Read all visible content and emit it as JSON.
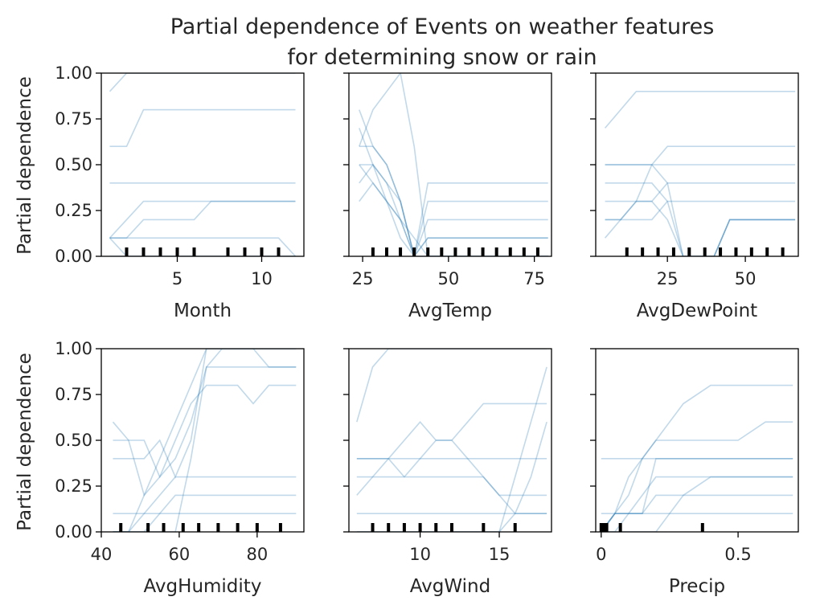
{
  "title_line1": "Partial dependence of Events on weather features",
  "title_line2": "for determining snow or rain",
  "ylabel": "Partial dependence",
  "line_color": "#1f77b4",
  "chart_data": [
    {
      "type": "line",
      "xlabel": "Month",
      "xlim": [
        0.5,
        12.5
      ],
      "ylim": [
        0,
        1
      ],
      "xticks": [
        5,
        10
      ],
      "yticks": [
        0,
        0.25,
        0.5,
        0.75,
        1.0
      ],
      "rug": [
        2,
        3,
        4,
        5,
        6,
        8,
        9,
        10,
        11
      ],
      "x": [
        1,
        2,
        3,
        4,
        5,
        6,
        7,
        8,
        9,
        10,
        11,
        12
      ],
      "series": [
        {
          "values": [
            0.9,
            1.0,
            1.0,
            1.0,
            1.0,
            1.0,
            1.0,
            1.0,
            1.0,
            1.0,
            1.0,
            1.0
          ]
        },
        {
          "values": [
            0.6,
            0.6,
            0.8,
            0.8,
            0.8,
            0.8,
            0.8,
            0.8,
            0.8,
            0.8,
            0.8,
            0.8
          ]
        },
        {
          "values": [
            0.4,
            0.4,
            0.4,
            0.4,
            0.4,
            0.4,
            0.4,
            0.4,
            0.4,
            0.4,
            0.4,
            0.4
          ]
        },
        {
          "values": [
            0.1,
            0.2,
            0.3,
            0.3,
            0.3,
            0.3,
            0.3,
            0.3,
            0.3,
            0.3,
            0.3,
            0.3
          ]
        },
        {
          "values": [
            0.1,
            0.1,
            0.2,
            0.2,
            0.2,
            0.2,
            0.3,
            0.3,
            0.3,
            0.3,
            0.3,
            0.3
          ]
        },
        {
          "values": [
            0.1,
            0.1,
            0.1,
            0.1,
            0.1,
            0.1,
            0.1,
            0.1,
            0.1,
            0.1,
            0.1,
            0.0
          ]
        },
        {
          "values": [
            0.1,
            0.0,
            0.0,
            0.0,
            0.0,
            0.0,
            0.0,
            0.0,
            0.0,
            0.0,
            0.0,
            0.0
          ]
        },
        {
          "values": [
            0.0,
            0.0,
            0.0,
            0.0,
            0.0,
            0.0,
            0.0,
            0.0,
            0.0,
            0.0,
            0.0,
            0.0
          ]
        }
      ]
    },
    {
      "type": "line",
      "xlabel": "AvgTemp",
      "xlim": [
        21,
        80
      ],
      "ylim": [
        0,
        1
      ],
      "xticks": [
        25,
        50,
        75
      ],
      "yticks": [
        0,
        0.25,
        0.5,
        0.75,
        1.0
      ],
      "rug": [
        28,
        32,
        36,
        40,
        44,
        48,
        52,
        56,
        60,
        64,
        68,
        72,
        76
      ],
      "x": [
        24,
        28,
        32,
        36,
        40,
        44,
        48,
        52,
        60,
        70,
        79
      ],
      "series": [
        {
          "values": [
            0.6,
            0.6,
            0.5,
            0.3,
            0.0,
            0.1,
            0.1,
            0.1,
            0.1,
            0.1,
            0.1
          ]
        },
        {
          "values": [
            0.5,
            0.4,
            0.3,
            0.2,
            0.0,
            0.3,
            0.3,
            0.3,
            0.3,
            0.3,
            0.3
          ]
        },
        {
          "values": [
            0.7,
            0.5,
            0.4,
            0.2,
            0.0,
            0.2,
            0.2,
            0.2,
            0.2,
            0.2,
            0.2
          ]
        },
        {
          "values": [
            0.8,
            0.6,
            0.5,
            0.3,
            0.0,
            0.4,
            0.4,
            0.4,
            0.4,
            0.4,
            0.4
          ]
        },
        {
          "values": [
            0.4,
            0.5,
            0.3,
            0.1,
            0.0,
            0.1,
            0.1,
            0.1,
            0.1,
            0.1,
            0.1
          ]
        },
        {
          "values": [
            0.6,
            0.8,
            0.9,
            1.0,
            0.6,
            0.0,
            0.0,
            0.0,
            0.0,
            0.0,
            0.0
          ]
        },
        {
          "values": [
            0.3,
            0.4,
            0.3,
            0.2,
            0.1,
            0.0,
            0.0,
            0.0,
            0.0,
            0.0,
            0.0
          ]
        },
        {
          "values": [
            0.5,
            0.5,
            0.4,
            0.3,
            0.0,
            0.0,
            0.0,
            0.0,
            0.0,
            0.0,
            0.0
          ]
        }
      ]
    },
    {
      "type": "line",
      "xlabel": "AvgDewPoint",
      "xlim": [
        2,
        67
      ],
      "ylim": [
        0,
        1
      ],
      "xticks": [
        25,
        50
      ],
      "yticks": [
        0,
        0.25,
        0.5,
        0.75,
        1.0
      ],
      "rug": [
        12,
        17,
        22,
        27,
        32,
        37,
        42,
        47,
        52,
        57,
        62
      ],
      "x": [
        5,
        10,
        15,
        20,
        25,
        30,
        35,
        40,
        45,
        50,
        55,
        60,
        66
      ],
      "series": [
        {
          "values": [
            0.7,
            0.8,
            0.9,
            0.9,
            0.9,
            0.9,
            0.9,
            0.9,
            0.9,
            0.9,
            0.9,
            0.9,
            0.9
          ]
        },
        {
          "values": [
            0.5,
            0.5,
            0.5,
            0.5,
            0.5,
            0.5,
            0.5,
            0.5,
            0.5,
            0.5,
            0.5,
            0.5,
            0.5
          ]
        },
        {
          "values": [
            0.5,
            0.5,
            0.5,
            0.5,
            0.4,
            0.0,
            0.0,
            0.0,
            0.2,
            0.2,
            0.2,
            0.2,
            0.2
          ]
        },
        {
          "values": [
            0.4,
            0.4,
            0.4,
            0.4,
            0.3,
            0.0,
            0.0,
            0.0,
            0.2,
            0.2,
            0.2,
            0.2,
            0.2
          ]
        },
        {
          "values": [
            0.3,
            0.3,
            0.3,
            0.3,
            0.2,
            0.0,
            0.0,
            0.0,
            0.2,
            0.2,
            0.2,
            0.2,
            0.2
          ]
        },
        {
          "values": [
            0.2,
            0.2,
            0.3,
            0.3,
            0.4,
            0.4,
            0.4,
            0.4,
            0.4,
            0.4,
            0.4,
            0.4,
            0.4
          ]
        },
        {
          "values": [
            0.1,
            0.2,
            0.3,
            0.5,
            0.6,
            0.6,
            0.6,
            0.6,
            0.6,
            0.6,
            0.6,
            0.6,
            0.6
          ]
        },
        {
          "values": [
            0.2,
            0.2,
            0.2,
            0.2,
            0.3,
            0.3,
            0.3,
            0.3,
            0.3,
            0.3,
            0.3,
            0.3,
            0.3
          ]
        }
      ]
    },
    {
      "type": "line",
      "xlabel": "AvgHumidity",
      "xlim": [
        40,
        92
      ],
      "ylim": [
        0,
        1
      ],
      "xticks": [
        40,
        60,
        80
      ],
      "yticks": [
        0,
        0.25,
        0.5,
        0.75,
        1.0
      ],
      "rug": [
        45,
        52,
        56,
        61,
        65,
        70,
        75,
        80,
        86
      ],
      "x": [
        43,
        47,
        51,
        55,
        59,
        63,
        67,
        71,
        75,
        79,
        83,
        87,
        90
      ],
      "series": [
        {
          "values": [
            0.5,
            0.5,
            0.5,
            0.3,
            0.4,
            0.6,
            0.9,
            0.9,
            0.9,
            0.9,
            0.9,
            0.9,
            0.9
          ]
        },
        {
          "values": [
            0.4,
            0.4,
            0.4,
            0.5,
            0.3,
            0.5,
            1.0,
            1.0,
            1.0,
            1.0,
            0.9,
            0.9,
            0.9
          ]
        },
        {
          "values": [
            0.6,
            0.5,
            0.2,
            0.3,
            0.5,
            0.7,
            0.8,
            0.8,
            0.8,
            0.7,
            0.8,
            0.8,
            0.8
          ]
        },
        {
          "values": [
            0.0,
            0.0,
            0.1,
            0.2,
            0.3,
            0.3,
            0.3,
            0.3,
            0.3,
            0.3,
            0.3,
            0.3,
            0.3
          ]
        },
        {
          "values": [
            0.0,
            0.0,
            0.0,
            0.1,
            0.2,
            0.2,
            0.2,
            0.2,
            0.2,
            0.2,
            0.2,
            0.2,
            0.2
          ]
        },
        {
          "values": [
            0.1,
            0.1,
            0.1,
            0.1,
            0.1,
            0.1,
            0.1,
            0.1,
            0.1,
            0.1,
            0.1,
            0.1,
            0.1
          ]
        },
        {
          "values": [
            0.0,
            0.0,
            0.0,
            0.0,
            0.0,
            0.4,
            0.9,
            1.0,
            1.0,
            1.0,
            1.0,
            1.0,
            1.0
          ]
        },
        {
          "values": [
            0.0,
            0.0,
            0.2,
            0.4,
            0.6,
            0.8,
            1.0,
            1.0,
            1.0,
            1.0,
            1.0,
            1.0,
            1.0
          ]
        }
      ]
    },
    {
      "type": "line",
      "xlabel": "AvgWind",
      "xlim": [
        5.5,
        18.3
      ],
      "ylim": [
        0,
        1
      ],
      "xticks": [
        10,
        15
      ],
      "yticks": [
        0,
        0.25,
        0.5,
        0.75,
        1.0
      ],
      "rug": [
        7,
        8,
        9,
        10,
        11,
        12,
        14,
        16
      ],
      "x": [
        6,
        7,
        8,
        9,
        10,
        11,
        12,
        13,
        14,
        15,
        16,
        17,
        18
      ],
      "series": [
        {
          "values": [
            0.1,
            0.1,
            0.1,
            0.1,
            0.1,
            0.1,
            0.1,
            0.1,
            0.1,
            0.1,
            0.1,
            0.1,
            0.1
          ]
        },
        {
          "values": [
            0.6,
            0.9,
            1.0,
            1.0,
            1.0,
            1.0,
            1.0,
            1.0,
            1.0,
            1.0,
            1.0,
            1.0,
            1.0
          ]
        },
        {
          "values": [
            0.4,
            0.4,
            0.4,
            0.4,
            0.4,
            0.4,
            0.4,
            0.4,
            0.4,
            0.4,
            0.4,
            0.4,
            0.4
          ]
        },
        {
          "values": [
            0.3,
            0.3,
            0.3,
            0.3,
            0.4,
            0.5,
            0.5,
            0.6,
            0.7,
            0.7,
            0.7,
            0.7,
            0.7
          ]
        },
        {
          "values": [
            0.4,
            0.4,
            0.4,
            0.3,
            0.3,
            0.3,
            0.3,
            0.3,
            0.3,
            0.2,
            0.2,
            0.2,
            0.2
          ]
        },
        {
          "values": [
            0.0,
            0.0,
            0.0,
            0.0,
            0.0,
            0.0,
            0.0,
            0.0,
            0.0,
            0.0,
            0.3,
            0.6,
            0.9
          ]
        },
        {
          "values": [
            0.0,
            0.0,
            0.0,
            0.0,
            0.0,
            0.0,
            0.0,
            0.0,
            0.0,
            0.0,
            0.1,
            0.3,
            0.6
          ]
        },
        {
          "values": [
            0.2,
            0.3,
            0.4,
            0.5,
            0.6,
            0.5,
            0.5,
            0.4,
            0.3,
            0.2,
            0.1,
            0.1,
            0.1
          ]
        }
      ]
    },
    {
      "type": "line",
      "xlabel": "Precip",
      "xlim": [
        -0.02,
        0.72
      ],
      "ylim": [
        0,
        1
      ],
      "xticks": [
        0.0,
        0.5
      ],
      "yticks": [
        0,
        0.25,
        0.5,
        0.75,
        1.0
      ],
      "rug": [
        0.0,
        0.01,
        0.02,
        0.07,
        0.37
      ],
      "x": [
        0.0,
        0.05,
        0.1,
        0.15,
        0.2,
        0.25,
        0.3,
        0.4,
        0.5,
        0.6,
        0.7
      ],
      "series": [
        {
          "values": [
            0.0,
            0.1,
            0.1,
            0.1,
            0.4,
            0.4,
            0.4,
            0.4,
            0.4,
            0.4,
            0.4
          ]
        },
        {
          "values": [
            0.0,
            0.1,
            0.3,
            0.4,
            0.5,
            0.5,
            0.5,
            0.5,
            0.5,
            0.6,
            0.6
          ]
        },
        {
          "values": [
            0.0,
            0.1,
            0.2,
            0.4,
            0.5,
            0.6,
            0.7,
            0.8,
            0.8,
            0.8,
            0.8
          ]
        },
        {
          "values": [
            0.1,
            0.1,
            0.1,
            0.1,
            0.1,
            0.1,
            0.1,
            0.1,
            0.1,
            0.1,
            0.1
          ]
        },
        {
          "values": [
            0.4,
            0.4,
            0.4,
            0.4,
            0.4,
            0.4,
            0.4,
            0.4,
            0.4,
            0.4,
            0.4
          ]
        },
        {
          "values": [
            0.0,
            0.0,
            0.1,
            0.2,
            0.3,
            0.3,
            0.3,
            0.3,
            0.3,
            0.3,
            0.3
          ]
        },
        {
          "values": [
            0.0,
            0.0,
            0.0,
            0.0,
            0.0,
            0.1,
            0.2,
            0.3,
            0.3,
            0.3,
            0.3
          ]
        },
        {
          "values": [
            0.0,
            0.1,
            0.1,
            0.1,
            0.2,
            0.2,
            0.2,
            0.2,
            0.2,
            0.2,
            0.2
          ]
        }
      ]
    }
  ]
}
